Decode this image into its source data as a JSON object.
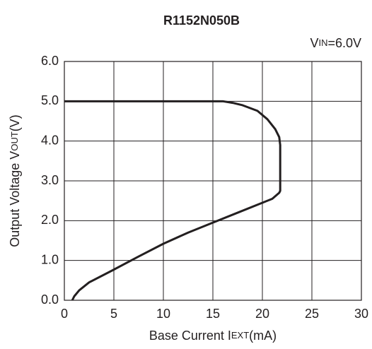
{
  "chart_data": {
    "type": "line",
    "title": "R1152N050B",
    "annotation": [
      "V",
      "IN",
      "=6.0V"
    ],
    "xlabel": [
      "Base Current I",
      "EXT",
      "(mA)"
    ],
    "ylabel": [
      "Output Voltage V",
      "OUT",
      "(V)"
    ],
    "x": [
      0,
      16,
      17,
      18,
      19.5,
      20.5,
      21.3,
      21.7,
      21.8,
      21.8,
      21.7,
      21,
      20,
      17.5,
      15,
      12.5,
      10,
      7.5,
      5,
      2.5,
      1.5,
      1,
      0.8
    ],
    "values": [
      5.0,
      5.0,
      4.96,
      4.9,
      4.76,
      4.55,
      4.3,
      4.1,
      3.9,
      2.75,
      2.7,
      2.55,
      2.45,
      2.2,
      1.95,
      1.7,
      1.42,
      1.1,
      0.77,
      0.45,
      0.25,
      0.1,
      0.0
    ],
    "color": "#231f20",
    "xlim": [
      0,
      30
    ],
    "xticks": [
      0,
      5,
      10,
      15,
      20,
      25,
      30
    ],
    "ylim": [
      0,
      6
    ],
    "yticks": [
      {
        "value": 0,
        "label": "0.0"
      },
      {
        "value": 1,
        "label": "1.0"
      },
      {
        "value": 2,
        "label": "2.0"
      },
      {
        "value": 3,
        "label": "3.0"
      },
      {
        "value": 4,
        "label": "4.0"
      },
      {
        "value": 5,
        "label": "5.0"
      },
      {
        "value": 6,
        "label": "6.0"
      }
    ],
    "grid": true
  }
}
